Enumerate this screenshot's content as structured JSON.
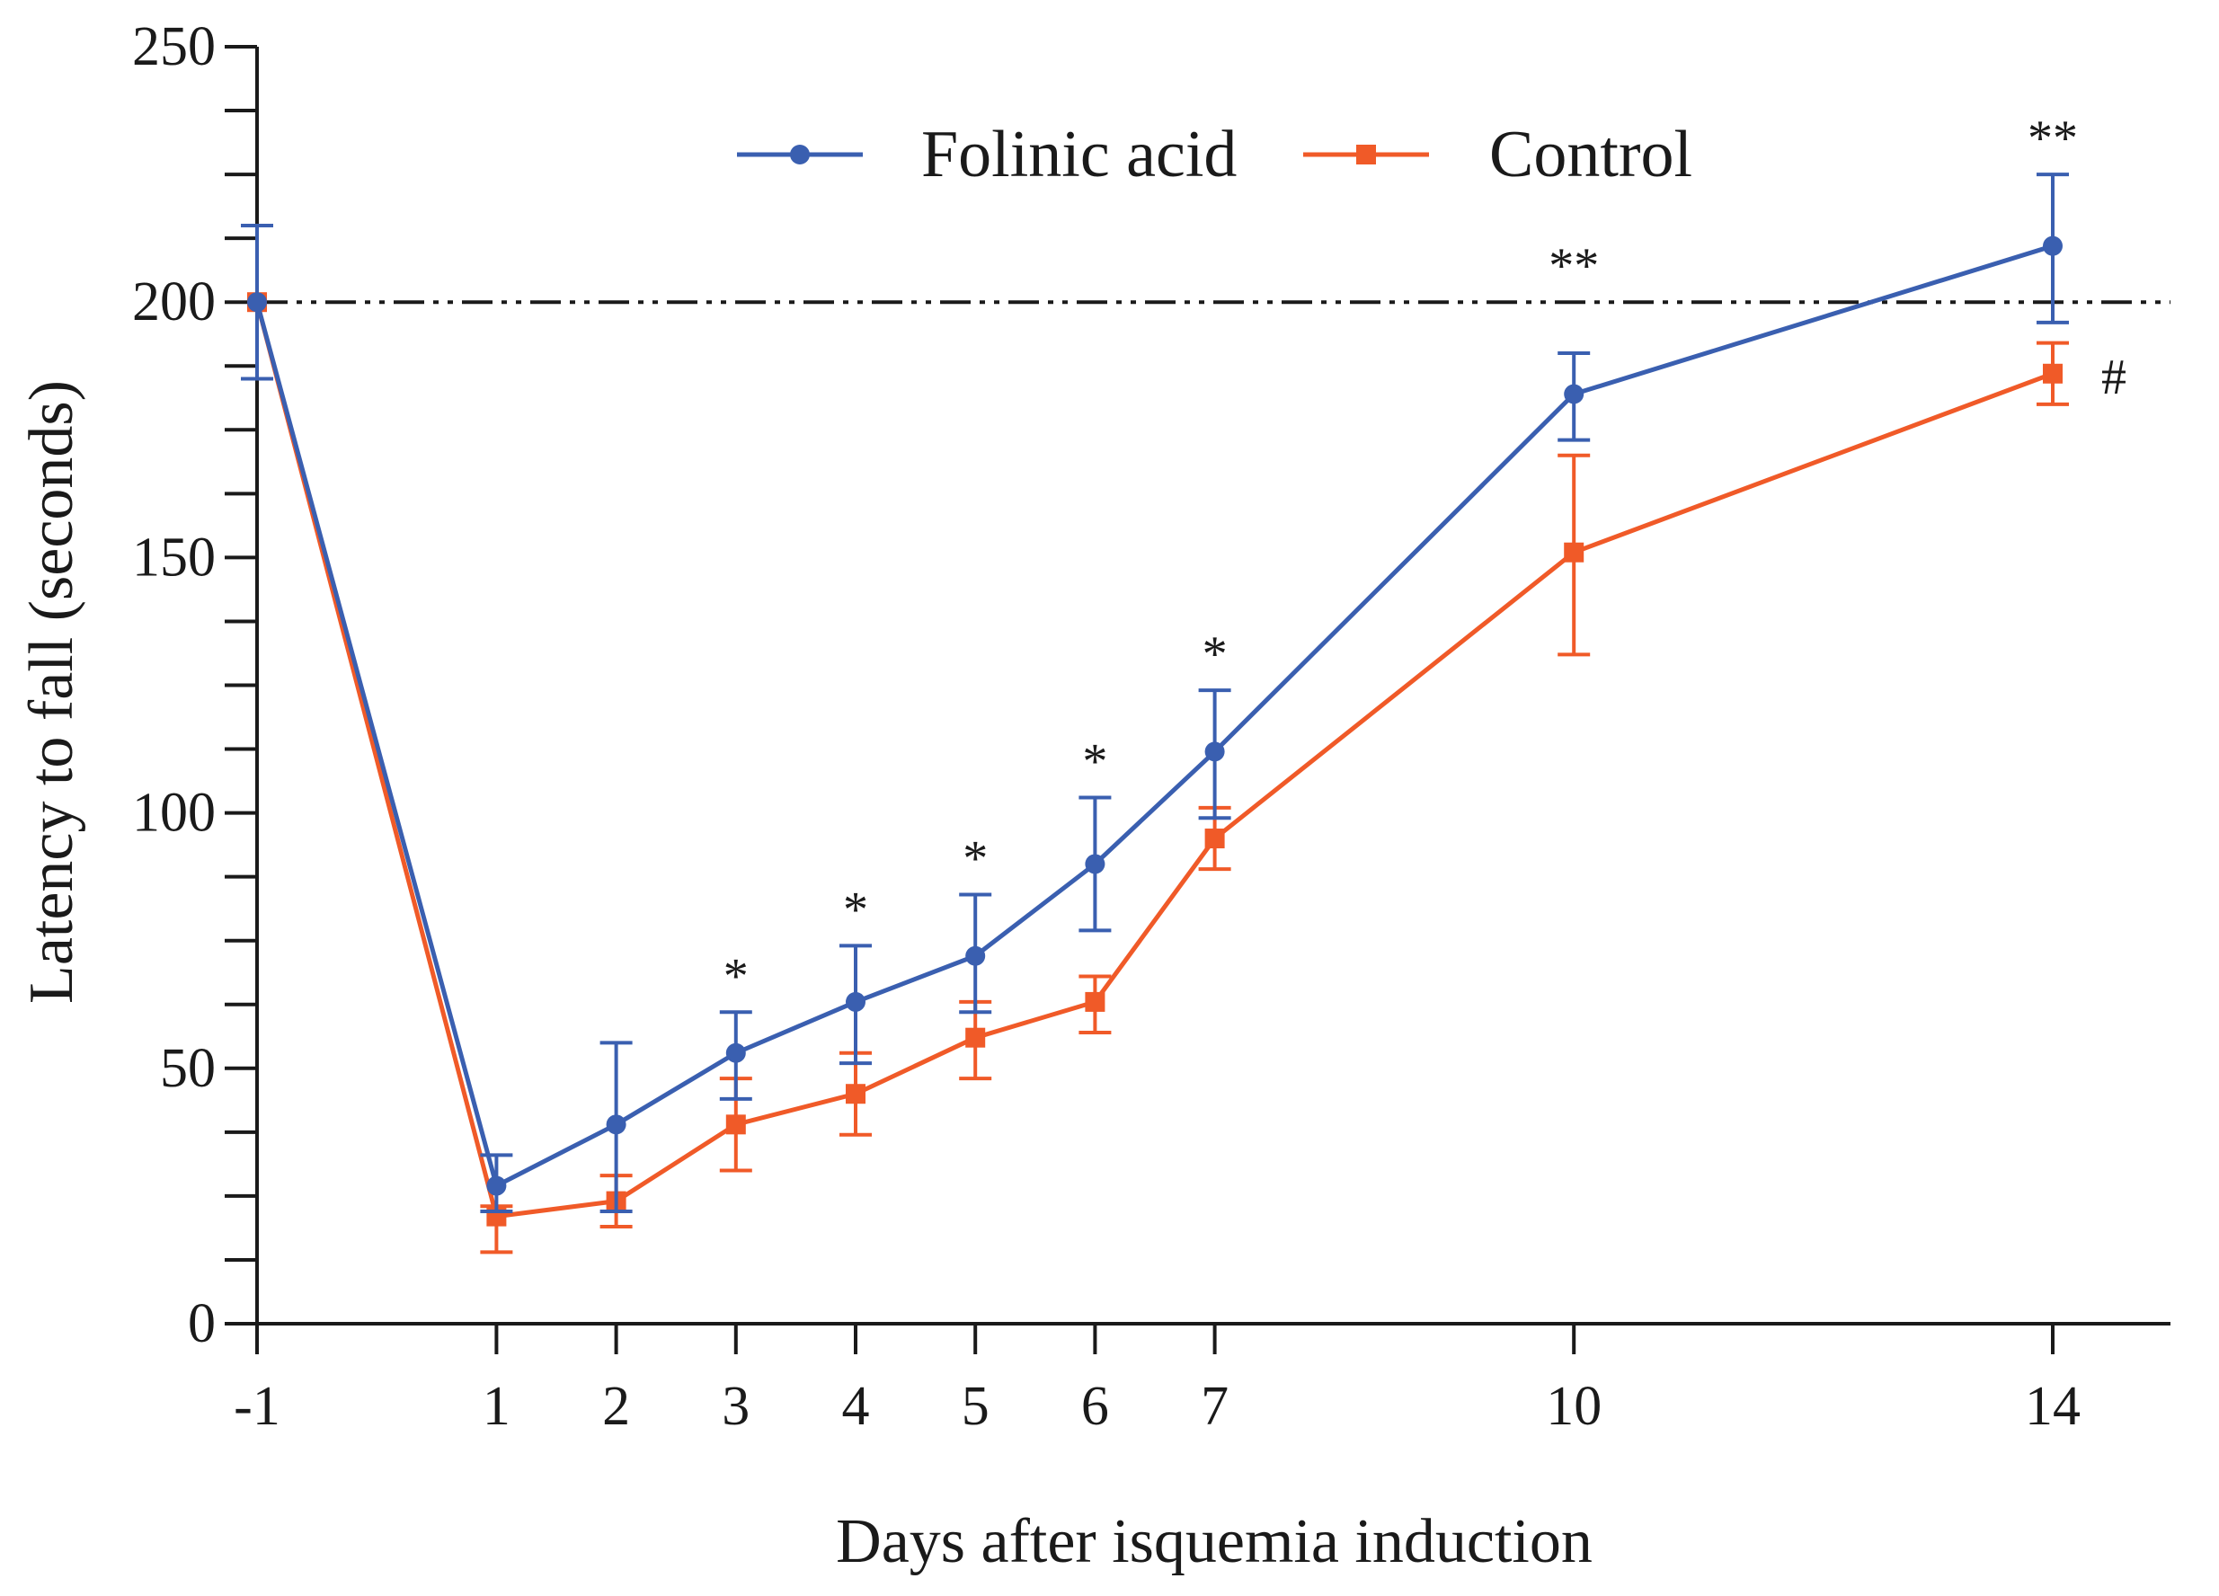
{
  "chart_data": {
    "type": "line",
    "title": "",
    "xlabel": "Days after isquemia induction",
    "ylabel": "Latency to fall (seconds)",
    "x": [
      -1,
      1,
      2,
      3,
      4,
      5,
      6,
      7,
      10,
      14
    ],
    "x_tick_labels": [
      "-1",
      "1",
      "2",
      "3",
      "4",
      "5",
      "6",
      "7",
      "10",
      "14"
    ],
    "ylim": [
      0,
      250
    ],
    "y_ticks": [
      0,
      50,
      100,
      150,
      200,
      250
    ],
    "y_minor_step": 12.5,
    "reference_line": 200,
    "legend_position": "top-center",
    "series": [
      {
        "name": "Folinic acid",
        "color": "#3a5fb0",
        "marker": "circle",
        "values": [
          200,
          27,
          39,
          53,
          63,
          72,
          90,
          112,
          182,
          211
        ],
        "err_upper": [
          215,
          33,
          55,
          61,
          74,
          84,
          103,
          124,
          190,
          225
        ],
        "err_lower": [
          185,
          22,
          22,
          44,
          51,
          61,
          77,
          99,
          173,
          196
        ]
      },
      {
        "name": "Control",
        "color": "#f05a28",
        "marker": "square",
        "values": [
          200,
          21,
          24,
          39,
          45,
          56,
          63,
          95,
          151,
          186
        ],
        "err_upper": [
          200,
          23,
          29,
          48,
          53,
          63,
          68,
          101,
          170,
          192
        ],
        "err_lower": [
          200,
          14,
          19,
          30,
          37,
          48,
          57,
          89,
          131,
          180
        ]
      }
    ],
    "annotations": [
      {
        "x": 3,
        "y": 61,
        "text": "*"
      },
      {
        "x": 4,
        "y": 74,
        "text": "*"
      },
      {
        "x": 5,
        "y": 84,
        "text": "*"
      },
      {
        "x": 6,
        "y": 103,
        "text": "*"
      },
      {
        "x": 7,
        "y": 124,
        "text": "*"
      },
      {
        "x": 10,
        "y": 200,
        "text": "**"
      },
      {
        "x": 14,
        "y": 225,
        "text": "**"
      },
      {
        "x": 14,
        "y": 186,
        "text": "#",
        "side": "right"
      }
    ]
  }
}
